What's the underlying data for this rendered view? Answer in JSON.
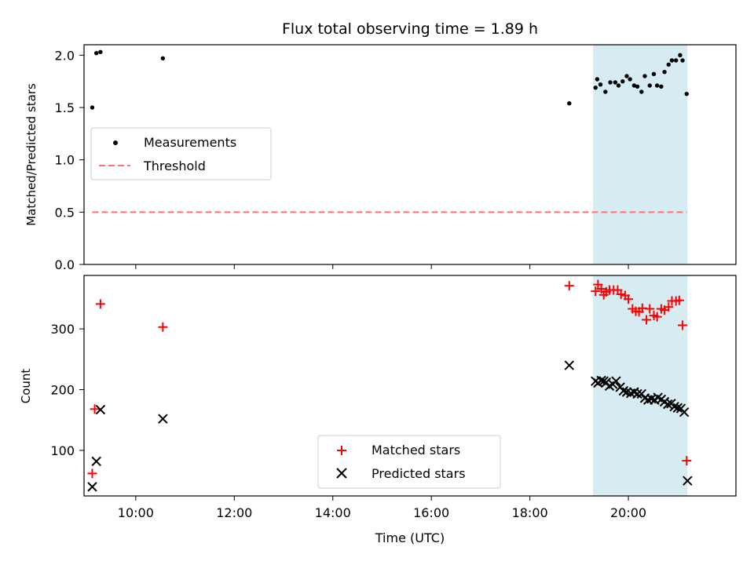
{
  "chart_data": [
    {
      "type": "scatter",
      "panel": "top",
      "title": "Flux total observing time = 1.89 h",
      "ylabel": "Matched/Predicted stars",
      "xlim": [
        "08:57",
        "22:11"
      ],
      "ylim": [
        0,
        2.1
      ],
      "yticks": [
        0.0,
        0.5,
        1.0,
        1.5,
        2.0
      ],
      "ytick_labels": [
        "0.0",
        "0.5",
        "1.0",
        "1.5",
        "2.0"
      ],
      "grid": false,
      "legend_position": "center-left",
      "shaded_interval": {
        "x": [
          "19:17",
          "21:12"
        ],
        "color": "#add8e6"
      },
      "series": [
        {
          "name": "Measurements",
          "marker": "dot",
          "color": "#000000",
          "x": [
            "09:07",
            "09:12",
            "09:17",
            "10:33",
            "18:48",
            "19:20",
            "19:22",
            "19:26",
            "19:32",
            "19:38",
            "19:44",
            "19:48",
            "19:53",
            "19:58",
            "20:02",
            "20:07",
            "20:11",
            "20:16",
            "20:20",
            "20:26",
            "20:31",
            "20:35",
            "20:40",
            "20:44",
            "20:49",
            "20:53",
            "20:58",
            "21:03",
            "21:06",
            "21:11"
          ],
          "y": [
            1.5,
            2.02,
            2.03,
            1.97,
            1.54,
            1.69,
            1.77,
            1.72,
            1.65,
            1.74,
            1.74,
            1.71,
            1.75,
            1.8,
            1.77,
            1.71,
            1.7,
            1.65,
            1.8,
            1.71,
            1.82,
            1.71,
            1.7,
            1.84,
            1.91,
            1.95,
            1.95,
            2.0,
            1.95,
            1.63
          ]
        },
        {
          "name": "Threshold",
          "style": "dashed",
          "color": "#ff7070",
          "x": [
            "09:07",
            "21:11"
          ],
          "y": [
            0.5,
            0.5
          ]
        }
      ]
    },
    {
      "type": "scatter",
      "panel": "bottom",
      "xlabel": "Time (UTC)",
      "ylabel": "Count",
      "xlim": [
        "08:57",
        "22:11"
      ],
      "ylim": [
        25,
        388
      ],
      "xticks": [
        "10:00",
        "12:00",
        "14:00",
        "16:00",
        "18:00",
        "20:00"
      ],
      "yticks": [
        100,
        200,
        300
      ],
      "ytick_labels": [
        "100",
        "200",
        "300"
      ],
      "grid": false,
      "legend_position": "lower-center",
      "shaded_interval": {
        "x": [
          "19:17",
          "21:12"
        ],
        "color": "#add8e6"
      },
      "series": [
        {
          "name": "Matched stars",
          "marker": "plus",
          "color": "#ff0000",
          "x": [
            "09:07",
            "09:10",
            "09:17",
            "10:33",
            "18:48",
            "19:20",
            "19:23",
            "19:27",
            "19:30",
            "19:33",
            "19:37",
            "19:42",
            "19:47",
            "19:51",
            "19:56",
            "20:00",
            "20:05",
            "20:09",
            "20:13",
            "20:17",
            "20:22",
            "20:26",
            "20:31",
            "20:35",
            "20:40",
            "20:44",
            "20:49",
            "20:53",
            "20:58",
            "21:02",
            "21:06",
            "21:11"
          ],
          "y": [
            62,
            168,
            341,
            303,
            371,
            362,
            373,
            366,
            356,
            361,
            364,
            364,
            364,
            357,
            355,
            349,
            333,
            329,
            328,
            334,
            315,
            333,
            322,
            320,
            333,
            331,
            336,
            346,
            346,
            347,
            306,
            83
          ]
        },
        {
          "name": "Predicted stars",
          "marker": "x",
          "color": "#000000",
          "x": [
            "09:07",
            "09:12",
            "09:17",
            "10:33",
            "18:48",
            "19:20",
            "19:23",
            "19:27",
            "19:30",
            "19:33",
            "19:37",
            "19:41",
            "19:45",
            "19:50",
            "19:54",
            "19:58",
            "20:03",
            "20:07",
            "20:11",
            "20:16",
            "20:20",
            "20:24",
            "20:28",
            "20:32",
            "20:36",
            "20:40",
            "20:44",
            "20:48",
            "20:52",
            "20:56",
            "21:00",
            "21:04",
            "21:08",
            "21:12"
          ],
          "y": [
            40,
            82,
            167,
            152,
            240,
            214,
            211,
            215,
            214,
            212,
            206,
            209,
            214,
            204,
            198,
            196,
            194,
            196,
            193,
            193,
            186,
            183,
            185,
            183,
            187,
            184,
            180,
            176,
            177,
            172,
            170,
            169,
            163,
            50
          ]
        }
      ]
    }
  ]
}
